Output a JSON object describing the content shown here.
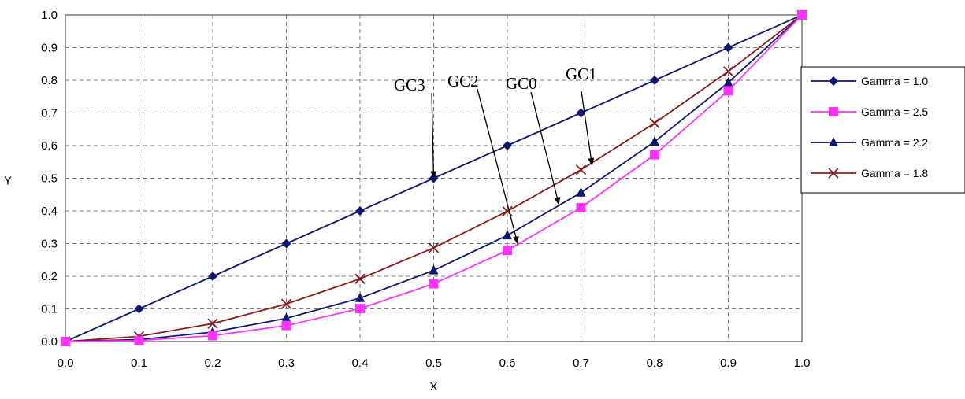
{
  "chart_data": {
    "type": "line",
    "title": "",
    "xlabel": "X",
    "ylabel": "Y",
    "xlim": [
      0,
      1
    ],
    "ylim": [
      0,
      1
    ],
    "grid": true,
    "legend_position": "right",
    "x_ticks": [
      "0.0",
      "0.1",
      "0.2",
      "0.3",
      "0.4",
      "0.5",
      "0.6",
      "0.7",
      "0.8",
      "0.9",
      "1.0"
    ],
    "y_ticks": [
      "0.0",
      "0.1",
      "0.2",
      "0.3",
      "0.4",
      "0.5",
      "0.6",
      "0.7",
      "0.8",
      "0.9",
      "1.0"
    ],
    "x": [
      0.0,
      0.1,
      0.2,
      0.3,
      0.4,
      0.5,
      0.6,
      0.7,
      0.8,
      0.9,
      1.0
    ],
    "series": [
      {
        "name": "Gamma = 1.0",
        "color": "#0d1670",
        "marker": "diamond",
        "values": [
          0.0,
          0.1,
          0.2,
          0.3,
          0.4,
          0.5,
          0.6,
          0.7,
          0.8,
          0.9,
          1.0
        ]
      },
      {
        "name": "Gamma = 2.5",
        "color": "#ff33ff",
        "marker": "square",
        "values": [
          0.0,
          0.003,
          0.018,
          0.049,
          0.101,
          0.177,
          0.279,
          0.41,
          0.572,
          0.768,
          1.0
        ]
      },
      {
        "name": "Gamma = 2.2",
        "color": "#0d1670",
        "marker": "triangle",
        "values": [
          0.0,
          0.006,
          0.029,
          0.071,
          0.133,
          0.218,
          0.325,
          0.456,
          0.612,
          0.793,
          1.0
        ]
      },
      {
        "name": "Gamma = 1.8",
        "color": "#8b1a1a",
        "marker": "x",
        "values": [
          0.0,
          0.016,
          0.055,
          0.115,
          0.192,
          0.287,
          0.399,
          0.526,
          0.669,
          0.827,
          1.0
        ]
      }
    ],
    "annotations": [
      {
        "text": "GC3",
        "target_x": 0.5,
        "target_y": 0.5
      },
      {
        "text": "GC2",
        "target_x": 0.614,
        "target_y": 0.3
      },
      {
        "text": "GC0",
        "target_x": 0.67,
        "target_y": 0.42
      },
      {
        "text": "GC1",
        "target_x": 0.715,
        "target_y": 0.54
      }
    ]
  }
}
